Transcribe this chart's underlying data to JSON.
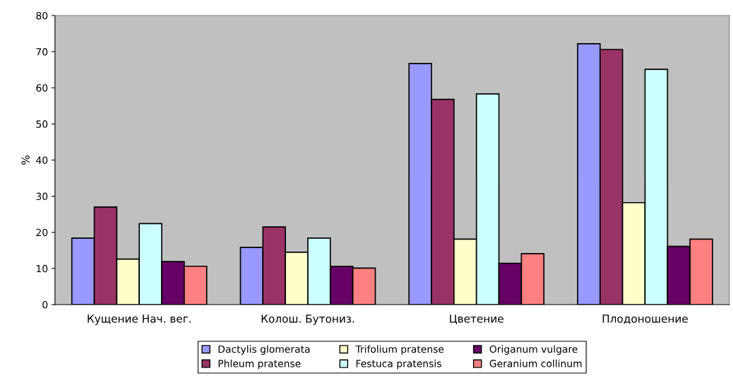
{
  "chart_data": {
    "type": "bar",
    "ylabel": "%",
    "categories": [
      "Кущение Нач. вег.",
      "Колош. Бутониз.",
      "Цветение",
      "Плодоношение"
    ],
    "series": [
      {
        "name": "Dactylis glomerata",
        "color": "#9999ff",
        "values": [
          18.4,
          15.8,
          66.7,
          72.2
        ]
      },
      {
        "name": "Phleum pratense",
        "color": "#993366",
        "values": [
          27.0,
          21.5,
          56.8,
          70.6
        ]
      },
      {
        "name": "Trifolium pratense",
        "color": "#ffffcc",
        "values": [
          12.6,
          14.5,
          18.1,
          28.2
        ]
      },
      {
        "name": "Festuca pratensis",
        "color": "#ccffff",
        "values": [
          22.4,
          18.4,
          58.3,
          65.1
        ]
      },
      {
        "name": "Origanum vulgare",
        "color": "#660066",
        "values": [
          11.9,
          10.6,
          11.4,
          16.1
        ]
      },
      {
        "name": "Geranium collinum",
        "color": "#ff8080",
        "values": [
          10.6,
          10.1,
          14.1,
          18.1
        ]
      }
    ],
    "ylim": [
      0,
      80
    ],
    "yticks": [
      0,
      10,
      20,
      30,
      40,
      50,
      60,
      70,
      80
    ],
    "grid": false,
    "legend": "bottom"
  }
}
